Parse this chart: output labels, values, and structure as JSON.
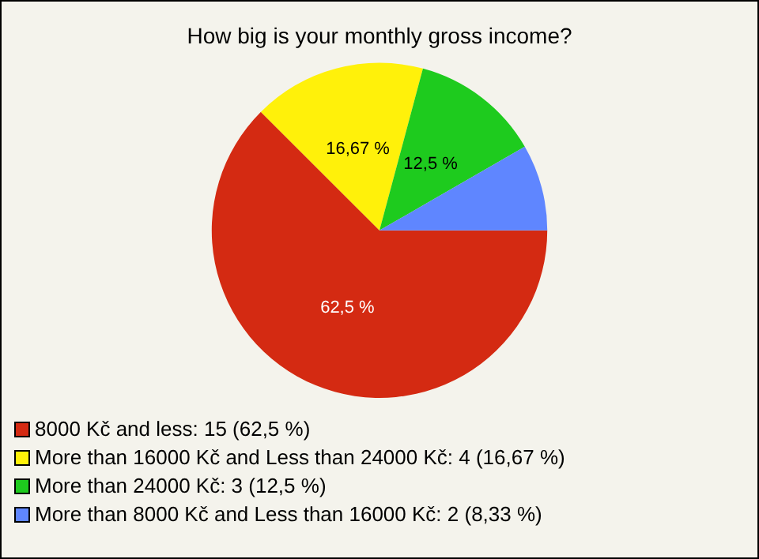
{
  "chart_data": {
    "type": "pie",
    "title": "How big is your monthly gross income?",
    "categories": [
      "8000 Kč and less: 15 (62,5 %)",
      "More than 16000 Kč and Less than 24000 Kč: 4 (16,67 %)",
      "More than 24000 Kč: 3 (12,5 %)",
      "More than 8000 Kč and Less than 16000 Kč: 2 (8,33 %)"
    ],
    "values": [
      62.5,
      16.67,
      12.5,
      8.33
    ],
    "value_labels": [
      "62,5 %",
      "16,67 %",
      "12,5 %",
      null
    ],
    "colors": [
      "#d42a12",
      "#fff10a",
      "#1ecb1e",
      "#5f86ff"
    ],
    "legend": "bottom left"
  }
}
